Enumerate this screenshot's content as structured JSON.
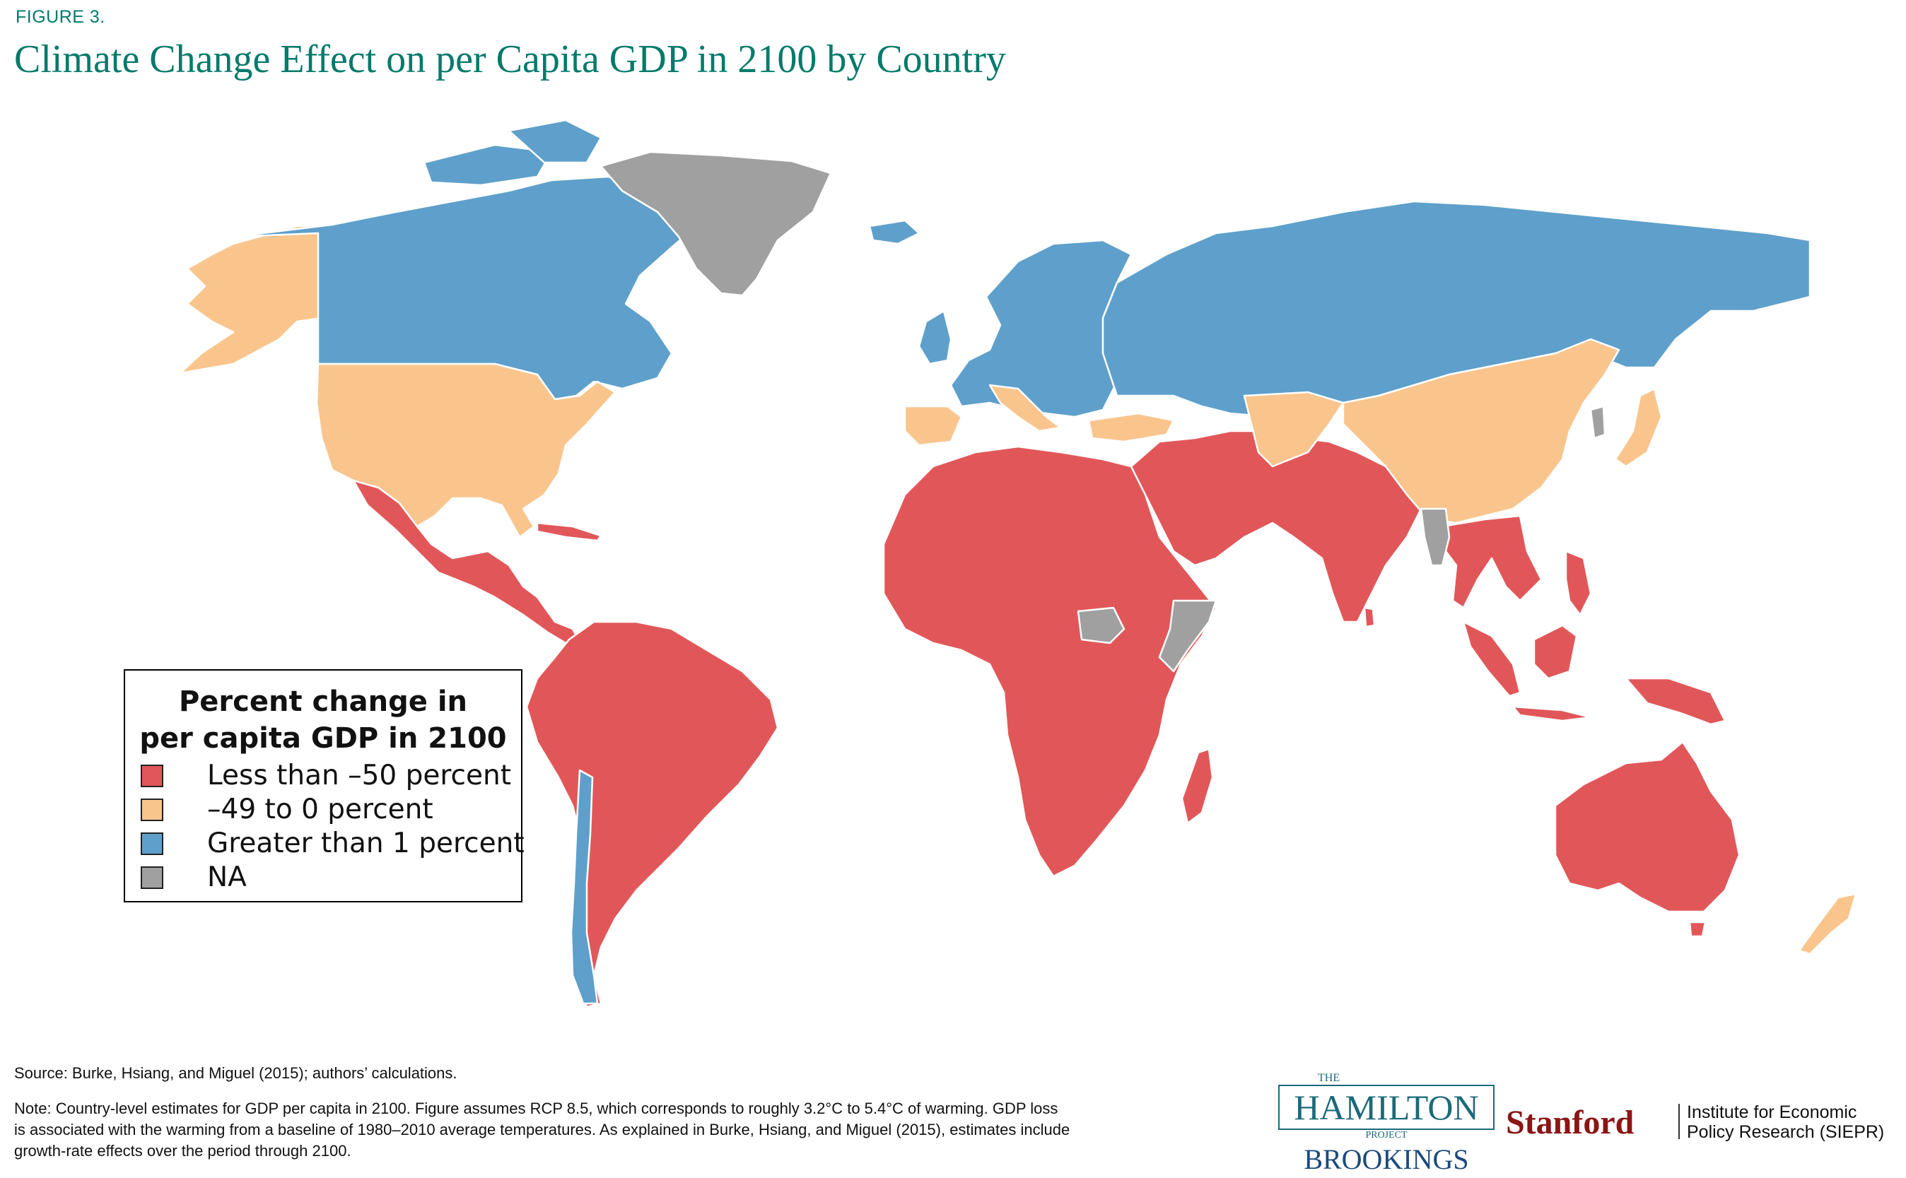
{
  "header": {
    "figure_label": "FIGURE 3.",
    "title": "Climate Change Effect on per Capita GDP in 2100 by Country"
  },
  "colors": {
    "less_than_minus_50": "#e15759",
    "minus_49_to_0": "#f9c58d",
    "greater_than_1": "#5ea0cb",
    "na": "#a0a0a0",
    "border": "#ffffff",
    "title": "#047a6a",
    "brookings": "#1b4a7b",
    "stanford": "#8c1515"
  },
  "legend": {
    "title_line1": "Percent change in",
    "title_line2": "per capita GDP in 2100",
    "items": [
      {
        "label": "Less than –50 percent",
        "category": "less_than_minus_50"
      },
      {
        "label": "–49 to 0 percent",
        "category": "minus_49_to_0"
      },
      {
        "label": "Greater than 1 percent",
        "category": "greater_than_1"
      },
      {
        "label": "NA",
        "category": "na"
      }
    ]
  },
  "map_regions": [
    {
      "region": "North America (Canada)",
      "category": "greater_than_1"
    },
    {
      "region": "United States",
      "category": "minus_49_to_0"
    },
    {
      "region": "Greenland",
      "category": "na"
    },
    {
      "region": "Mexico and Central America",
      "category": "less_than_minus_50"
    },
    {
      "region": "South America",
      "category": "less_than_minus_50"
    },
    {
      "region": "Chile",
      "category": "greater_than_1"
    },
    {
      "region": "Northern and Central Europe",
      "category": "greater_than_1"
    },
    {
      "region": "Southern Europe",
      "category": "minus_49_to_0"
    },
    {
      "region": "Russia and Central Asia",
      "category": "greater_than_1"
    },
    {
      "region": "Africa",
      "category": "less_than_minus_50"
    },
    {
      "region": "Middle East and South Asia",
      "category": "less_than_minus_50"
    },
    {
      "region": "China",
      "category": "minus_49_to_0"
    },
    {
      "region": "Japan",
      "category": "minus_49_to_0"
    },
    {
      "region": "Southeast Asia",
      "category": "less_than_minus_50"
    },
    {
      "region": "Australia",
      "category": "less_than_minus_50"
    },
    {
      "region": "New Zealand",
      "category": "minus_49_to_0"
    }
  ],
  "footer": {
    "source": "Source: Burke, Hsiang, and Miguel (2015); authors’ calculations.",
    "note_line1": "Note: Country-level estimates for GDP per capita in 2100. Figure assumes RCP 8.5, which corresponds to roughly 3.2°C to 5.4°C of warming. GDP loss",
    "note_line2": "is associated with the warming from a baseline of 1980–2010 average temperatures. As explained in Burke, Hsiang, and Miguel (2015), estimates include",
    "note_line3": "growth-rate effects over the period through 2100."
  },
  "logos": {
    "hamilton_the": "THE",
    "hamilton_name": "HAMILTON",
    "hamilton_project": "PROJECT",
    "brookings": "BROOKINGS",
    "stanford": "Stanford",
    "siepr_line1": "Institute for Economic",
    "siepr_line2": "Policy Research (SIEPR)"
  }
}
